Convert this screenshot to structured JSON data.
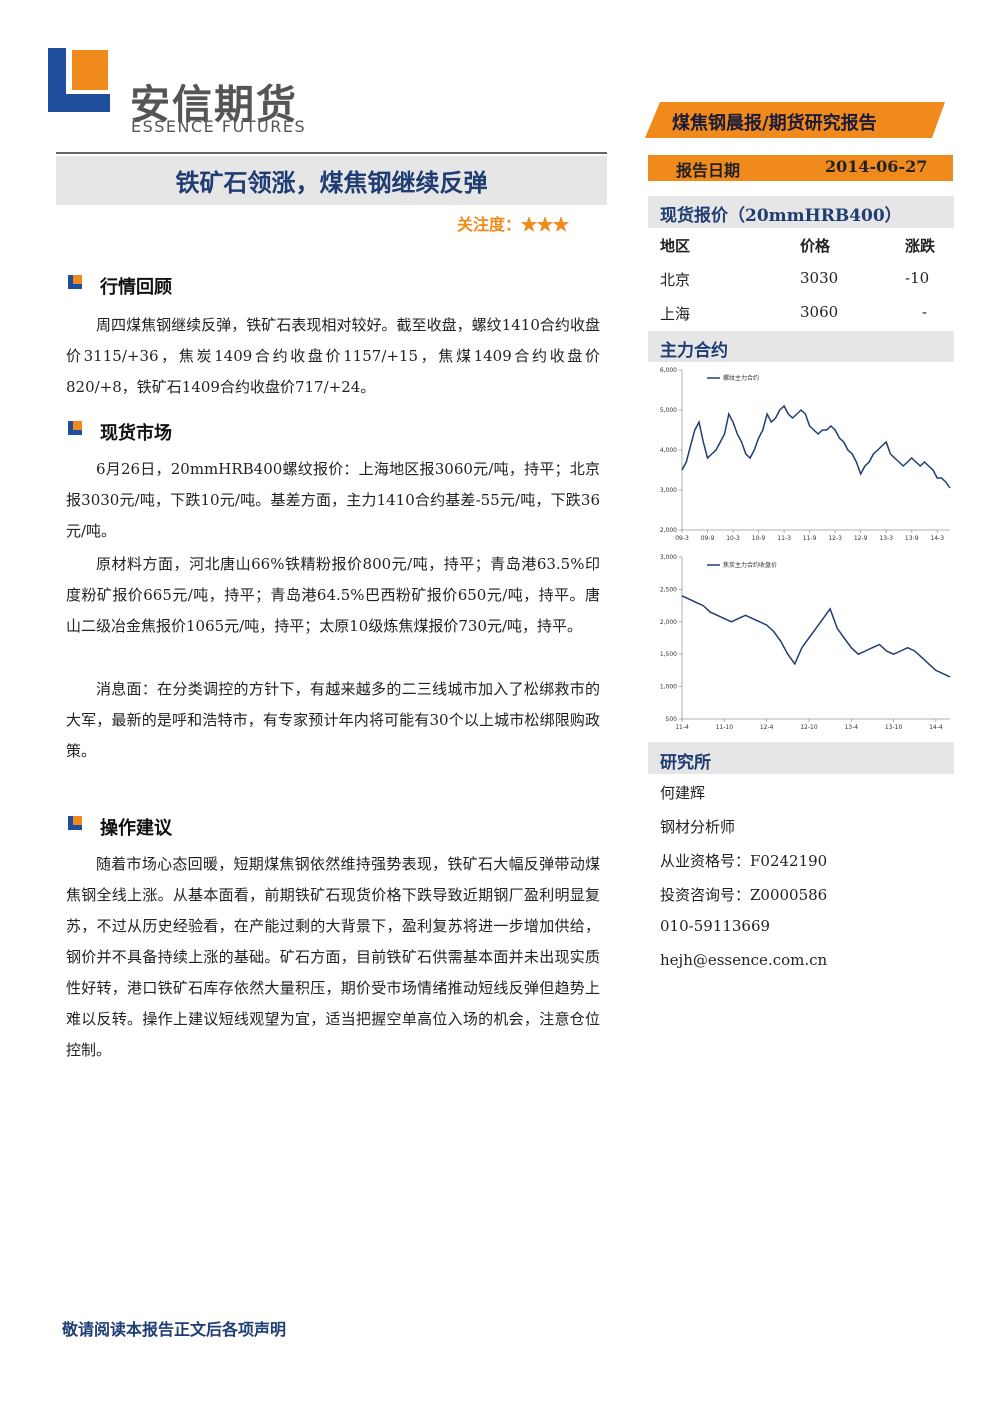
{
  "header": {
    "logo_cn": "安信期货",
    "logo_en": "ESSENCE FUTURES",
    "banner": "煤焦钢晨报/期货研究报告"
  },
  "title": "铁矿石领涨，煤焦钢继续反弹",
  "attention": {
    "label": "关注度：",
    "stars": "★★★"
  },
  "sections": [
    {
      "heading": "行情回顾",
      "paragraphs": [
        "周四煤焦钢继续反弹，铁矿石表现相对较好。截至收盘，螺纹1410合约收盘价3115/+36，焦炭1409合约收盘价1157/+15，焦煤1409合约收盘价820/+8，铁矿石1409合约收盘价717/+24。"
      ]
    },
    {
      "heading": "现货市场",
      "paragraphs": [
        "6月26日，20mmHRB400螺纹报价：上海地区报3060元/吨，持平；北京报3030元/吨，下跌10元/吨。基差方面，主力1410合约基差-55元/吨，下跌36元/吨。",
        "原材料方面，河北唐山66%铁精粉报价800元/吨，持平；青岛港63.5%印度粉矿报价665元/吨，持平；青岛港64.5%巴西粉矿报价650元/吨，持平。唐山二级冶金焦报价1065元/吨，持平；太原10级炼焦煤报价730元/吨，持平。",
        "消息面：在分类调控的方针下，有越来越多的二三线城市加入了松绑救市的大军，最新的是呼和浩特市，有专家预计年内将可能有30个以上城市松绑限购政策。"
      ]
    },
    {
      "heading": "操作建议",
      "paragraphs": [
        "随着市场心态回暖，短期煤焦钢依然维持强势表现，铁矿石大幅反弹带动煤焦钢全线上涨。从基本面看，前期铁矿石现货价格下跌导致近期钢厂盈利明显复苏，不过从历史经验看，在产能过剩的大背景下，盈利复苏将进一步增加供给，钢价并不具备持续上涨的基础。矿石方面，目前铁矿石供需基本面并未出现实质性好转，港口铁矿石库存依然大量积压，期价受市场情绪推动短线反弹但趋势上难以反转。操作上建议短线观望为宜，适当把握空单高位入场的机会，注意仓位控制。"
      ]
    }
  ],
  "sidebar": {
    "date_label": "报告日期",
    "date": "2014-06-27",
    "spot_heading": "现货报价（20mmHRB400）",
    "table": {
      "header": [
        "地区",
        "价格",
        "涨跌"
      ],
      "rows": [
        [
          "北京",
          "3030",
          "-10"
        ],
        [
          "上海",
          "3060",
          "-"
        ]
      ]
    },
    "contract_heading": "主力合约",
    "research_heading": "研究所",
    "research": [
      "何建辉",
      "钢材分析师",
      "从业资格号：F0242190",
      "投资咨询号：Z0000586",
      "010-59113669",
      "hejh@essence.com.cn"
    ]
  },
  "chart_data": [
    {
      "type": "line",
      "categories": [
        "09-3",
        null,
        null,
        null,
        null,
        null,
        "09-9",
        null,
        null,
        null,
        null,
        null,
        "10-3",
        null,
        null,
        null,
        null,
        null,
        "10-9",
        null,
        null,
        null,
        null,
        null,
        "11-3",
        null,
        null,
        null,
        null,
        null,
        "11-9",
        null,
        null,
        null,
        null,
        null,
        "12-3",
        null,
        null,
        null,
        null,
        null,
        "12-9",
        null,
        null,
        null,
        null,
        null,
        "13-3",
        null,
        null,
        null,
        null,
        null,
        "13-9",
        null,
        null,
        null,
        null,
        null,
        "14-3",
        null,
        null,
        null
      ],
      "series": [
        {
          "name": "螺纹主力合约",
          "color": "#1f3d73",
          "values": [
            3500,
            3700,
            4100,
            4500,
            4700,
            4200,
            3800,
            3900,
            4000,
            4200,
            4400,
            4900,
            4700,
            4400,
            4200,
            3900,
            3800,
            4000,
            4300,
            4500,
            4900,
            4700,
            4800,
            5000,
            5100,
            4900,
            4800,
            4900,
            5000,
            4900,
            4600,
            4500,
            4400,
            4500,
            4500,
            4600,
            4500,
            4300,
            4200,
            4000,
            3900,
            3700,
            3400,
            3600,
            3700,
            3900,
            4000,
            4100,
            4200,
            3900,
            3800,
            3700,
            3600,
            3700,
            3800,
            3700,
            3600,
            3700,
            3600,
            3500,
            3300,
            3300,
            3200,
            3050
          ]
        }
      ],
      "ylim": [
        2000,
        6000
      ],
      "yticks": [
        {
          "value": 2000,
          "label": "2,000"
        },
        {
          "value": 3000,
          "label": "3,000"
        },
        {
          "value": 4000,
          "label": "4,000"
        },
        {
          "value": 5000,
          "label": "5,000"
        },
        {
          "value": 6000,
          "label": "6,000"
        }
      ]
    },
    {
      "type": "line",
      "categories": [
        "11-4",
        null,
        null,
        null,
        null,
        null,
        "11-10",
        null,
        null,
        null,
        null,
        null,
        "12-4",
        null,
        null,
        null,
        null,
        null,
        "12-10",
        null,
        null,
        null,
        null,
        null,
        "13-4",
        null,
        null,
        null,
        null,
        null,
        "13-10",
        null,
        null,
        null,
        null,
        null,
        "14-4",
        null,
        null
      ],
      "series": [
        {
          "name": "焦炭主力合约收盘价",
          "color": "#1f3d73",
          "values": [
            2400,
            2350,
            2300,
            2250,
            2150,
            2100,
            2050,
            2000,
            2050,
            2100,
            2050,
            2000,
            1950,
            1850,
            1700,
            1500,
            1350,
            1600,
            1750,
            1900,
            2050,
            2200,
            1900,
            1750,
            1600,
            1500,
            1550,
            1600,
            1650,
            1550,
            1500,
            1550,
            1600,
            1550,
            1450,
            1350,
            1250,
            1200,
            1150
          ]
        }
      ],
      "ylim": [
        500,
        3000
      ],
      "yticks": [
        500,
        {
          "value": 1000,
          "label": "1,000"
        },
        {
          "value": 1500,
          "label": "1,500"
        },
        {
          "value": 2000,
          "label": "2,000"
        },
        {
          "value": 2500,
          "label": "2,500"
        },
        {
          "value": 3000,
          "label": "3,000"
        }
      ]
    }
  ],
  "footer": "敬请阅读本报告正文后各项声明"
}
